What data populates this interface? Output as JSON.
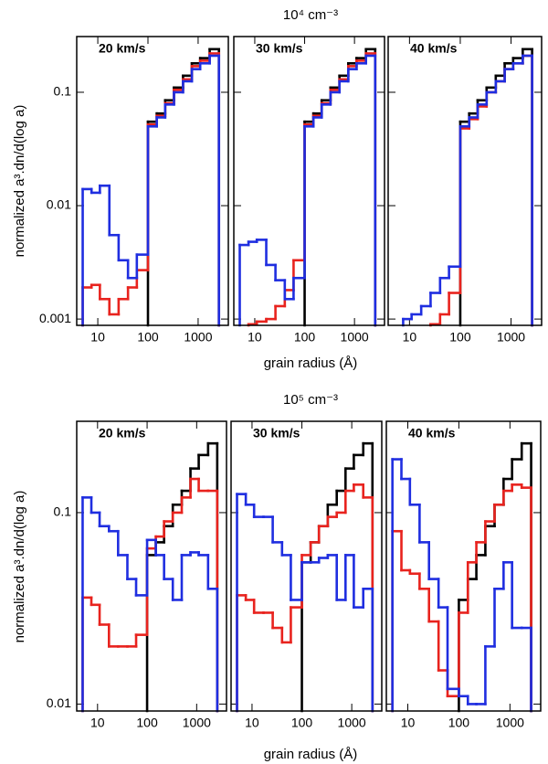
{
  "rows": [
    {
      "title": "10⁴ cm⁻³",
      "xlabel": "grain radius (Å)",
      "ylabel": "normalized a³.dn/d(log a)"
    },
    {
      "title": "10⁵ cm⁻³",
      "xlabel": "grain radius (Å)",
      "ylabel": "normalized a³.dn/d(log a)"
    }
  ],
  "chart_data": [
    {
      "type": "histogram",
      "title": "20 km/s",
      "log_x": true,
      "log_y": true,
      "bins": [
        5,
        7.5,
        11,
        17,
        26,
        40,
        60,
        100,
        150,
        220,
        330,
        500,
        750,
        1100,
        1700,
        2600
      ],
      "xlim": [
        3.8,
        4000
      ],
      "xticks": [
        10,
        100,
        1000
      ],
      "ylim": [
        0.00088,
        0.31
      ],
      "yticks": [
        0.001,
        0.01,
        0.1
      ],
      "series": [
        {
          "color": "#000000",
          "values": [
            null,
            null,
            null,
            null,
            null,
            null,
            null,
            0.055,
            0.065,
            0.085,
            0.11,
            0.14,
            0.18,
            0.2,
            0.24
          ]
        },
        {
          "color": "#e8231e",
          "values": [
            0.0019,
            0.002,
            0.0015,
            0.0011,
            0.0015,
            0.0019,
            0.0027,
            0.052,
            0.062,
            0.08,
            0.105,
            0.13,
            0.17,
            0.19,
            0.22
          ]
        },
        {
          "color": "#1f2ee0",
          "values": [
            0.014,
            0.013,
            0.015,
            0.0055,
            0.0033,
            0.0023,
            0.0037,
            0.05,
            0.06,
            0.078,
            0.1,
            0.125,
            0.16,
            0.18,
            0.21
          ]
        }
      ]
    },
    {
      "type": "histogram",
      "title": "30 km/s",
      "log_x": true,
      "log_y": true,
      "bins": [
        5,
        7.5,
        11,
        17,
        26,
        40,
        60,
        100,
        150,
        220,
        330,
        500,
        750,
        1100,
        1700,
        2600
      ],
      "xlim": [
        3.8,
        4000
      ],
      "xticks": [
        10,
        100,
        1000
      ],
      "ylim": [
        0.00088,
        0.31
      ],
      "yticks": [
        0.001,
        0.01,
        0.1
      ],
      "series": [
        {
          "color": "#000000",
          "values": [
            null,
            null,
            null,
            null,
            null,
            null,
            null,
            0.055,
            0.065,
            0.085,
            0.11,
            0.14,
            0.18,
            0.2,
            0.24
          ]
        },
        {
          "color": "#e8231e",
          "values": [
            null,
            0.0009,
            0.00095,
            0.001,
            0.0013,
            0.0018,
            0.0033,
            0.052,
            0.062,
            0.08,
            0.105,
            0.13,
            0.17,
            0.19,
            0.22
          ]
        },
        {
          "color": "#1f2ee0",
          "values": [
            0.0045,
            0.0048,
            0.005,
            0.003,
            0.0022,
            0.0015,
            0.0023,
            0.05,
            0.06,
            0.078,
            0.1,
            0.125,
            0.16,
            0.18,
            0.21
          ]
        }
      ]
    },
    {
      "type": "histogram",
      "title": "40 km/s",
      "log_x": true,
      "log_y": true,
      "bins": [
        5,
        7.5,
        11,
        17,
        26,
        40,
        60,
        100,
        150,
        220,
        330,
        500,
        750,
        1100,
        1700,
        2600
      ],
      "xlim": [
        3.8,
        4000
      ],
      "xticks": [
        10,
        100,
        1000
      ],
      "ylim": [
        0.00088,
        0.31
      ],
      "yticks": [
        0.001,
        0.01,
        0.1
      ],
      "series": [
        {
          "color": "#000000",
          "values": [
            null,
            null,
            null,
            null,
            null,
            null,
            null,
            0.055,
            0.065,
            0.085,
            0.11,
            0.14,
            0.18,
            0.2,
            0.24
          ]
        },
        {
          "color": "#e8231e",
          "values": [
            null,
            null,
            null,
            null,
            0.0009,
            0.0011,
            0.0017,
            0.048,
            0.058,
            0.075,
            0.1,
            0.125,
            0.16,
            0.18,
            0.21
          ]
        },
        {
          "color": "#1f2ee0",
          "values": [
            null,
            0.001,
            0.0011,
            0.0013,
            0.0017,
            0.0023,
            0.0029,
            0.05,
            0.06,
            0.078,
            0.1,
            0.125,
            0.16,
            0.18,
            0.21
          ]
        }
      ]
    },
    {
      "type": "histogram",
      "title": "20 km/s",
      "log_x": true,
      "log_y": true,
      "bins": [
        5,
        7.5,
        11,
        17,
        26,
        40,
        60,
        100,
        150,
        220,
        330,
        500,
        750,
        1100,
        1700,
        2600
      ],
      "xlim": [
        3.8,
        4000
      ],
      "xticks": [
        10,
        100,
        1000
      ],
      "ylim": [
        0.0092,
        0.3
      ],
      "yticks": [
        0.01,
        0.1
      ],
      "series": [
        {
          "color": "#000000",
          "values": [
            null,
            null,
            null,
            null,
            null,
            null,
            null,
            0.06,
            0.07,
            0.085,
            0.11,
            0.13,
            0.17,
            0.2,
            0.23
          ]
        },
        {
          "color": "#e8231e",
          "values": [
            0.036,
            0.033,
            0.026,
            0.02,
            0.02,
            0.02,
            0.023,
            0.065,
            0.075,
            0.09,
            0.1,
            0.12,
            0.15,
            0.13,
            0.13
          ]
        },
        {
          "color": "#1f2ee0",
          "values": [
            0.12,
            0.1,
            0.085,
            0.08,
            0.06,
            0.045,
            0.037,
            0.072,
            0.06,
            0.045,
            0.035,
            0.06,
            0.062,
            0.06,
            0.04
          ]
        }
      ]
    },
    {
      "type": "histogram",
      "title": "30 km/s",
      "log_x": true,
      "log_y": true,
      "bins": [
        5,
        7.5,
        11,
        17,
        26,
        40,
        60,
        100,
        150,
        220,
        330,
        500,
        750,
        1100,
        1700,
        2600
      ],
      "xlim": [
        3.8,
        4000
      ],
      "xticks": [
        10,
        100,
        1000
      ],
      "ylim": [
        0.0092,
        0.3
      ],
      "yticks": [
        0.01,
        0.1
      ],
      "series": [
        {
          "color": "#000000",
          "values": [
            null,
            null,
            null,
            null,
            null,
            null,
            null,
            0.055,
            0.07,
            0.085,
            0.11,
            0.13,
            0.17,
            0.2,
            0.23
          ]
        },
        {
          "color": "#e8231e",
          "values": [
            0.037,
            0.035,
            0.03,
            0.03,
            0.025,
            0.021,
            0.032,
            0.06,
            0.07,
            0.085,
            0.095,
            0.1,
            0.13,
            0.14,
            0.12
          ]
        },
        {
          "color": "#1f2ee0",
          "values": [
            0.125,
            0.11,
            0.095,
            0.095,
            0.07,
            0.06,
            0.035,
            0.055,
            0.055,
            0.058,
            0.06,
            0.035,
            0.06,
            0.032,
            0.04
          ]
        }
      ]
    },
    {
      "type": "histogram",
      "title": "40 km/s",
      "log_x": true,
      "log_y": true,
      "bins": [
        5,
        7.5,
        11,
        17,
        26,
        40,
        60,
        100,
        150,
        220,
        330,
        500,
        750,
        1100,
        1700,
        2600
      ],
      "xlim": [
        3.8,
        4000
      ],
      "xticks": [
        10,
        100,
        1000
      ],
      "ylim": [
        0.0092,
        0.3
      ],
      "yticks": [
        0.01,
        0.1
      ],
      "series": [
        {
          "color": "#000000",
          "values": [
            null,
            null,
            null,
            null,
            null,
            null,
            null,
            0.035,
            0.045,
            0.06,
            0.085,
            0.11,
            0.15,
            0.19,
            0.23
          ]
        },
        {
          "color": "#e8231e",
          "values": [
            0.08,
            0.05,
            0.048,
            0.04,
            0.027,
            0.015,
            0.011,
            0.03,
            0.055,
            0.07,
            0.09,
            0.11,
            0.13,
            0.14,
            0.135
          ]
        },
        {
          "color": "#1f2ee0",
          "values": [
            0.19,
            0.15,
            0.11,
            0.07,
            0.045,
            0.032,
            0.012,
            0.011,
            0.01,
            0.01,
            0.02,
            0.04,
            0.055,
            0.025,
            0.025
          ]
        }
      ]
    }
  ]
}
